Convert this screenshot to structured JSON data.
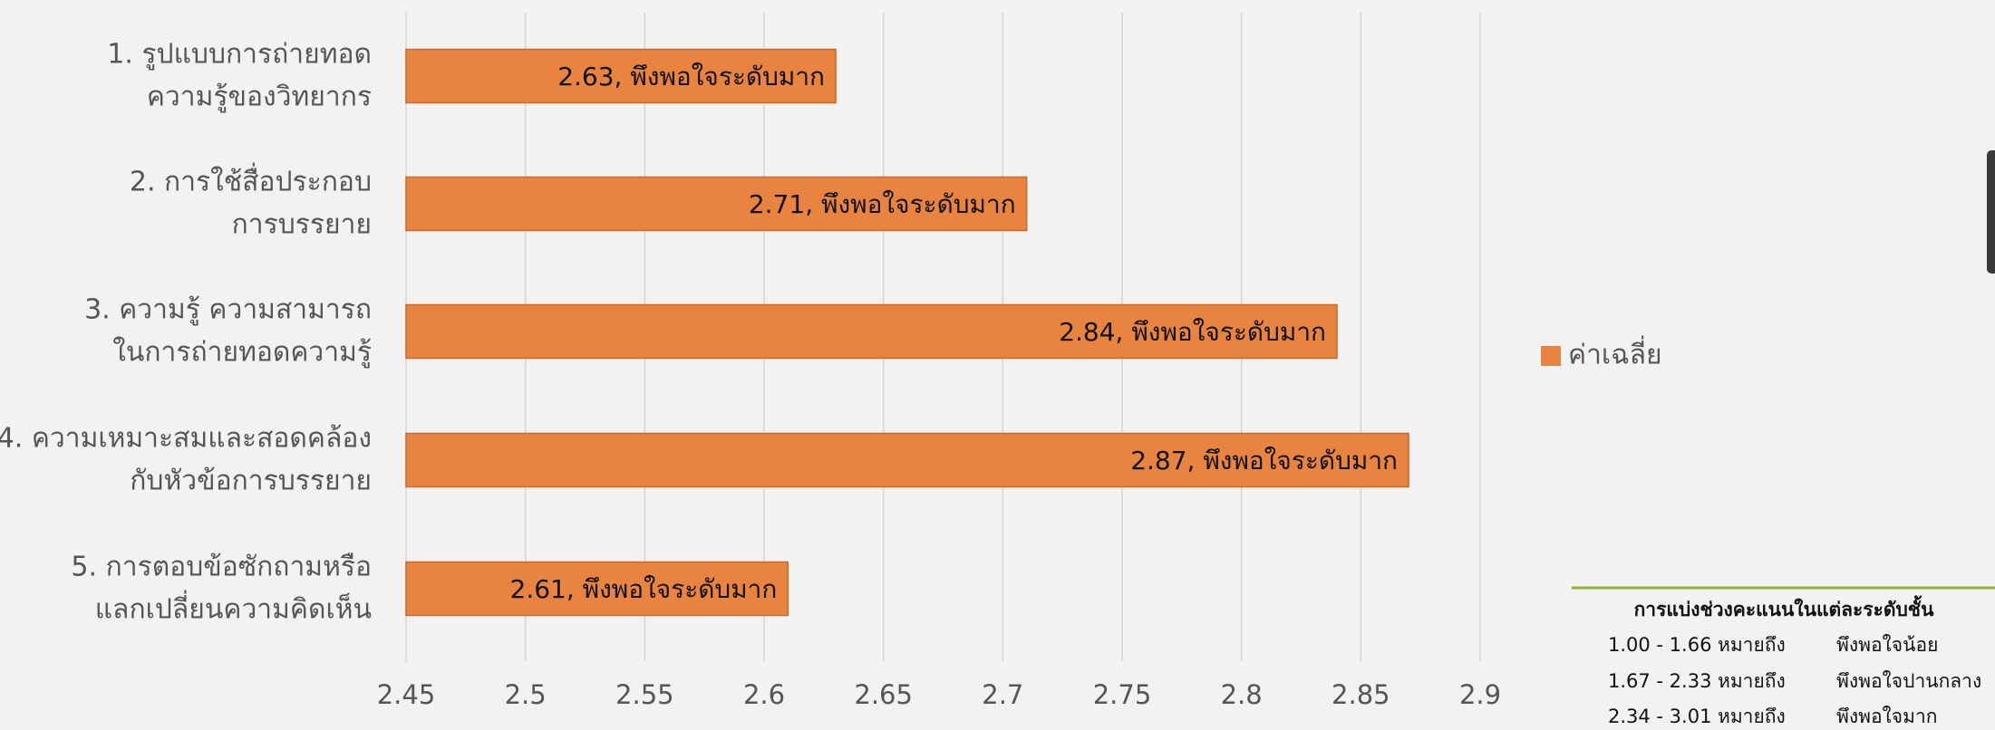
{
  "chart_data": {
    "type": "hbar",
    "categories": [
      [
        "1. รูปแบบการถ่ายทอด",
        "ความรู้ของวิทยากร"
      ],
      [
        "2. การใช้สื่อประกอบ",
        "การบรรยาย"
      ],
      [
        "3. ความรู้ ความสามารถ",
        "ในการถ่ายทอดความรู้"
      ],
      [
        "4. ความเหมาะสมและสอดคล้อง",
        "กับหัวข้อการบรรยาย"
      ],
      [
        "5. การตอบข้อซักถามหรือ",
        "แลกเปลี่ยนความคิดเห็น"
      ]
    ],
    "series": [
      {
        "name": "ค่าเฉลี่ย",
        "color": "#e8843f",
        "values": [
          2.63,
          2.71,
          2.84,
          2.87,
          2.61
        ],
        "value_labels": [
          "2.63, พึงพอใจระดับมาก",
          "2.71, พึงพอใจระดับมาก",
          "2.84, พึงพอใจระดับมาก",
          "2.87, พึงพอใจระดับมาก",
          "2.61, พึงพอใจระดับมาก"
        ]
      }
    ],
    "xlim": [
      2.45,
      2.9
    ],
    "xticks": [
      2.45,
      2.5,
      2.55,
      2.6,
      2.65,
      2.7,
      2.75,
      2.8,
      2.85,
      2.9
    ],
    "grid": true,
    "legend": "right"
  },
  "table": {
    "title": "การแบ่งช่วงคะแนนในแต่ละระดับชั้น",
    "rows": [
      [
        "1.00 - 1.66",
        "หมายถึง",
        "พึงพอใจน้อย"
      ],
      [
        "1.67 - 2.33",
        "หมายถึง",
        "พึงพอใจปานกลาง"
      ],
      [
        "2.34 - 3.01",
        "หมายถึง",
        "พึงพอใจมาก"
      ]
    ]
  }
}
